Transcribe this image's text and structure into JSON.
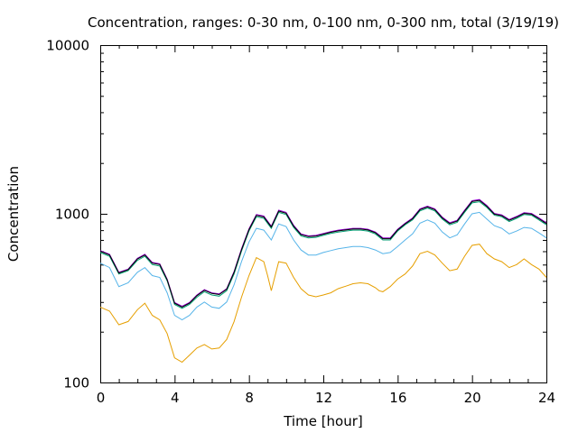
{
  "chart_data": {
    "type": "line",
    "title": "Concentration, ranges: 0-30 nm, 0-100 nm, 0-300 nm, total (3/19/19)",
    "xlabel": "Time [hour]",
    "ylabel": "Concentration",
    "xlim": [
      0,
      24
    ],
    "ylim": [
      100,
      10000
    ],
    "yscale": "log",
    "x_ticks": [
      "0",
      "4",
      "8",
      "12",
      "16",
      "20",
      "24"
    ],
    "y_ticks": [
      "100",
      "1000",
      "10000"
    ],
    "grid": false,
    "legend": "none",
    "series": [
      {
        "color": "#e69f00",
        "points": [
          [
            0,
            280
          ],
          [
            0.5,
            265
          ],
          [
            1,
            220
          ],
          [
            1.5,
            230
          ],
          [
            2,
            270
          ],
          [
            2.4,
            295
          ],
          [
            2.8,
            250
          ],
          [
            3.2,
            235
          ],
          [
            3.6,
            195
          ],
          [
            4,
            140
          ],
          [
            4.4,
            132
          ],
          [
            4.8,
            145
          ],
          [
            5.2,
            160
          ],
          [
            5.6,
            168
          ],
          [
            6,
            158
          ],
          [
            6.4,
            160
          ],
          [
            6.8,
            180
          ],
          [
            7.2,
            230
          ],
          [
            7.6,
            320
          ],
          [
            8,
            430
          ],
          [
            8.4,
            550
          ],
          [
            8.8,
            520
          ],
          [
            9.0,
            430
          ],
          [
            9.2,
            350
          ],
          [
            9.6,
            520
          ],
          [
            10,
            510
          ],
          [
            10.4,
            420
          ],
          [
            10.8,
            360
          ],
          [
            11.2,
            330
          ],
          [
            11.6,
            322
          ],
          [
            12,
            330
          ],
          [
            12.4,
            340
          ],
          [
            12.8,
            360
          ],
          [
            13.2,
            372
          ],
          [
            13.6,
            385
          ],
          [
            14,
            390
          ],
          [
            14.4,
            385
          ],
          [
            14.8,
            365
          ],
          [
            15.0,
            350
          ],
          [
            15.2,
            345
          ],
          [
            15.6,
            370
          ],
          [
            16,
            410
          ],
          [
            16.4,
            440
          ],
          [
            16.8,
            490
          ],
          [
            17.2,
            580
          ],
          [
            17.6,
            600
          ],
          [
            18,
            570
          ],
          [
            18.4,
            510
          ],
          [
            18.8,
            460
          ],
          [
            19.2,
            470
          ],
          [
            19.6,
            560
          ],
          [
            20,
            650
          ],
          [
            20.4,
            660
          ],
          [
            20.8,
            580
          ],
          [
            21.2,
            540
          ],
          [
            21.6,
            520
          ],
          [
            22,
            480
          ],
          [
            22.4,
            500
          ],
          [
            22.8,
            540
          ],
          [
            23.2,
            500
          ],
          [
            23.6,
            470
          ],
          [
            24,
            420
          ]
        ]
      },
      {
        "color": "#56b4e9",
        "points": [
          [
            0,
            510
          ],
          [
            0.5,
            480
          ],
          [
            1,
            370
          ],
          [
            1.5,
            390
          ],
          [
            2,
            450
          ],
          [
            2.4,
            480
          ],
          [
            2.8,
            430
          ],
          [
            3.2,
            420
          ],
          [
            3.6,
            340
          ],
          [
            4,
            250
          ],
          [
            4.4,
            235
          ],
          [
            4.8,
            250
          ],
          [
            5.2,
            280
          ],
          [
            5.6,
            300
          ],
          [
            6,
            280
          ],
          [
            6.4,
            275
          ],
          [
            6.8,
            300
          ],
          [
            7.2,
            380
          ],
          [
            7.6,
            520
          ],
          [
            8,
            680
          ],
          [
            8.4,
            820
          ],
          [
            8.8,
            800
          ],
          [
            9.2,
            700
          ],
          [
            9.6,
            870
          ],
          [
            10,
            840
          ],
          [
            10.4,
            700
          ],
          [
            10.8,
            610
          ],
          [
            11.2,
            570
          ],
          [
            11.6,
            570
          ],
          [
            12,
            590
          ],
          [
            12.4,
            605
          ],
          [
            12.8,
            620
          ],
          [
            13.2,
            630
          ],
          [
            13.6,
            640
          ],
          [
            14,
            640
          ],
          [
            14.4,
            630
          ],
          [
            14.8,
            610
          ],
          [
            15.2,
            580
          ],
          [
            15.6,
            590
          ],
          [
            16,
            640
          ],
          [
            16.4,
            700
          ],
          [
            16.8,
            760
          ],
          [
            17.2,
            880
          ],
          [
            17.6,
            920
          ],
          [
            18,
            880
          ],
          [
            18.4,
            780
          ],
          [
            18.8,
            720
          ],
          [
            19.2,
            750
          ],
          [
            19.6,
            870
          ],
          [
            20,
            1000
          ],
          [
            20.4,
            1020
          ],
          [
            20.8,
            930
          ],
          [
            21.2,
            850
          ],
          [
            21.6,
            820
          ],
          [
            22,
            760
          ],
          [
            22.4,
            790
          ],
          [
            22.8,
            830
          ],
          [
            23.2,
            820
          ],
          [
            23.6,
            770
          ],
          [
            24,
            720
          ]
        ]
      },
      {
        "color": "#009e73",
        "points": [
          [
            0,
            590
          ],
          [
            0.5,
            560
          ],
          [
            1,
            440
          ],
          [
            1.5,
            460
          ],
          [
            2,
            530
          ],
          [
            2.4,
            560
          ],
          [
            2.8,
            500
          ],
          [
            3.2,
            490
          ],
          [
            3.6,
            400
          ],
          [
            4,
            290
          ],
          [
            4.4,
            275
          ],
          [
            4.8,
            290
          ],
          [
            5.2,
            320
          ],
          [
            5.6,
            345
          ],
          [
            6,
            330
          ],
          [
            6.4,
            325
          ],
          [
            6.8,
            350
          ],
          [
            7.2,
            440
          ],
          [
            7.6,
            600
          ],
          [
            8,
            790
          ],
          [
            8.4,
            960
          ],
          [
            8.8,
            940
          ],
          [
            9.2,
            820
          ],
          [
            9.6,
            1020
          ],
          [
            10,
            990
          ],
          [
            10.4,
            830
          ],
          [
            10.8,
            740
          ],
          [
            11.2,
            720
          ],
          [
            11.6,
            725
          ],
          [
            12,
            745
          ],
          [
            12.4,
            765
          ],
          [
            12.8,
            780
          ],
          [
            13.2,
            790
          ],
          [
            13.6,
            800
          ],
          [
            14,
            800
          ],
          [
            14.4,
            790
          ],
          [
            14.8,
            760
          ],
          [
            15.2,
            700
          ],
          [
            15.6,
            700
          ],
          [
            16,
            790
          ],
          [
            16.4,
            860
          ],
          [
            16.8,
            920
          ],
          [
            17.2,
            1040
          ],
          [
            17.6,
            1080
          ],
          [
            18,
            1040
          ],
          [
            18.4,
            930
          ],
          [
            18.8,
            860
          ],
          [
            19.2,
            890
          ],
          [
            19.6,
            1020
          ],
          [
            20,
            1160
          ],
          [
            20.4,
            1180
          ],
          [
            20.8,
            1090
          ],
          [
            21.2,
            980
          ],
          [
            21.6,
            960
          ],
          [
            22,
            900
          ],
          [
            22.4,
            940
          ],
          [
            22.8,
            990
          ],
          [
            23.2,
            980
          ],
          [
            23.6,
            920
          ],
          [
            24,
            860
          ]
        ]
      },
      {
        "color": "#9400d3",
        "points": [
          [
            0,
            605
          ],
          [
            0.5,
            575
          ],
          [
            1,
            450
          ],
          [
            1.5,
            470
          ],
          [
            2,
            545
          ],
          [
            2.4,
            575
          ],
          [
            2.8,
            515
          ],
          [
            3.2,
            505
          ],
          [
            3.6,
            410
          ],
          [
            4,
            298
          ],
          [
            4.4,
            283
          ],
          [
            4.8,
            298
          ],
          [
            5.2,
            330
          ],
          [
            5.6,
            355
          ],
          [
            6,
            340
          ],
          [
            6.4,
            335
          ],
          [
            6.8,
            360
          ],
          [
            7.2,
            455
          ],
          [
            7.6,
            620
          ],
          [
            8,
            815
          ],
          [
            8.4,
            990
          ],
          [
            8.8,
            970
          ],
          [
            9.2,
            845
          ],
          [
            9.6,
            1050
          ],
          [
            10,
            1020
          ],
          [
            10.4,
            855
          ],
          [
            10.8,
            760
          ],
          [
            11.2,
            740
          ],
          [
            11.6,
            745
          ],
          [
            12,
            765
          ],
          [
            12.4,
            785
          ],
          [
            12.8,
            800
          ],
          [
            13.2,
            810
          ],
          [
            13.6,
            820
          ],
          [
            14,
            820
          ],
          [
            14.4,
            810
          ],
          [
            14.8,
            780
          ],
          [
            15.2,
            720
          ],
          [
            15.6,
            720
          ],
          [
            16,
            810
          ],
          [
            16.4,
            880
          ],
          [
            16.8,
            945
          ],
          [
            17.2,
            1070
          ],
          [
            17.6,
            1110
          ],
          [
            18,
            1070
          ],
          [
            18.4,
            955
          ],
          [
            18.8,
            885
          ],
          [
            19.2,
            915
          ],
          [
            19.6,
            1050
          ],
          [
            20,
            1195
          ],
          [
            20.4,
            1215
          ],
          [
            20.8,
            1120
          ],
          [
            21.2,
            1005
          ],
          [
            21.6,
            985
          ],
          [
            22,
            925
          ],
          [
            22.4,
            965
          ],
          [
            22.8,
            1015
          ],
          [
            23.2,
            1005
          ],
          [
            23.6,
            945
          ],
          [
            24,
            885
          ]
        ]
      },
      {
        "color": "#000000",
        "points": [
          [
            0,
            600
          ],
          [
            0.5,
            570
          ],
          [
            1,
            446
          ],
          [
            1.5,
            466
          ],
          [
            2,
            540
          ],
          [
            2.4,
            570
          ],
          [
            2.8,
            510
          ],
          [
            3.2,
            500
          ],
          [
            3.6,
            406
          ],
          [
            4,
            295
          ],
          [
            4.4,
            280
          ],
          [
            4.8,
            295
          ],
          [
            5.2,
            327
          ],
          [
            5.6,
            352
          ],
          [
            6,
            337
          ],
          [
            6.4,
            332
          ],
          [
            6.8,
            357
          ],
          [
            7.2,
            450
          ],
          [
            7.6,
            612
          ],
          [
            8,
            805
          ],
          [
            8.4,
            978
          ],
          [
            8.8,
            958
          ],
          [
            9.2,
            835
          ],
          [
            9.6,
            1038
          ],
          [
            10,
            1008
          ],
          [
            10.4,
            845
          ],
          [
            10.8,
            752
          ],
          [
            11.2,
            732
          ],
          [
            11.6,
            737
          ],
          [
            12,
            757
          ],
          [
            12.4,
            777
          ],
          [
            12.8,
            792
          ],
          [
            13.2,
            802
          ],
          [
            13.6,
            812
          ],
          [
            14,
            812
          ],
          [
            14.4,
            802
          ],
          [
            14.8,
            772
          ],
          [
            15.2,
            712
          ],
          [
            15.6,
            712
          ],
          [
            16,
            802
          ],
          [
            16.4,
            872
          ],
          [
            16.8,
            935
          ],
          [
            17.2,
            1058
          ],
          [
            17.6,
            1098
          ],
          [
            18,
            1058
          ],
          [
            18.4,
            945
          ],
          [
            18.8,
            875
          ],
          [
            19.2,
            905
          ],
          [
            19.6,
            1038
          ],
          [
            20,
            1182
          ],
          [
            20.4,
            1202
          ],
          [
            20.8,
            1108
          ],
          [
            21.2,
            995
          ],
          [
            21.6,
            975
          ],
          [
            22,
            915
          ],
          [
            22.4,
            955
          ],
          [
            22.8,
            1005
          ],
          [
            23.2,
            995
          ],
          [
            23.6,
            935
          ],
          [
            24,
            875
          ]
        ]
      }
    ]
  }
}
